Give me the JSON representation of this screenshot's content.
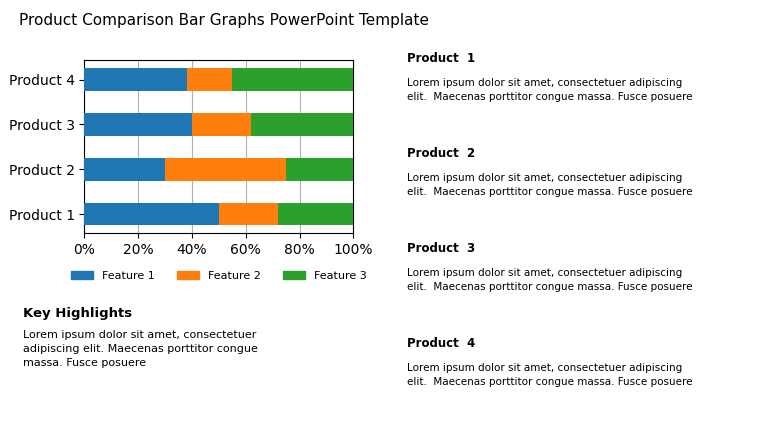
{
  "chart_data": {
    "type": "bar",
    "orientation": "horizontal",
    "stacked": true,
    "title": "Product Comparison Bar Graphs PowerPoint Template",
    "categories": [
      "Product 1",
      "Product 2",
      "Product 3",
      "Product 4"
    ],
    "series": [
      {
        "name": "Feature 1",
        "values": [
          50,
          30,
          40,
          38
        ]
      },
      {
        "name": "Feature 2",
        "values": [
          22,
          45,
          22,
          17
        ]
      },
      {
        "name": "Feature 3",
        "values": [
          28,
          25,
          38,
          45
        ]
      }
    ],
    "xlim": [
      0,
      100
    ],
    "xticks": [
      {
        "value": 0,
        "label": "0%"
      },
      {
        "value": 20,
        "label": "20%"
      },
      {
        "value": 40,
        "label": "40%"
      },
      {
        "value": 60,
        "label": "60%"
      },
      {
        "value": 80,
        "label": "80%"
      },
      {
        "value": 100,
        "label": "100%"
      }
    ],
    "grid": true,
    "legend": "upper center",
    "annotations": [
      {
        "title": "Key Highlights",
        "text": "Lorem ipsum dolor sit amet, consectetuer\nadipiscing elit. Maecenas porttitor congue\nmassa. Fusce posuere"
      },
      {
        "title": "Product  1",
        "text": "Lorem ipsum dolor sit amet, consectetuer adipiscing\nelit.  Maecenas porttitor congue massa. Fusce posuere"
      },
      {
        "title": "Product  2",
        "text": "Lorem ipsum dolor sit amet, consectetuer adipiscing\nelit.  Maecenas porttitor congue massa. Fusce posuere"
      },
      {
        "title": "Product  3",
        "text": "Lorem ipsum dolor sit amet, consectetuer adipiscing\nelit.  Maecenas porttitor congue massa. Fusce posuere"
      },
      {
        "title": "Product  4",
        "text": "Lorem ipsum dolor sit amet, consectetuer adipiscing\nelit.  Maecenas porttitor congue massa. Fusce posuere"
      }
    ]
  }
}
